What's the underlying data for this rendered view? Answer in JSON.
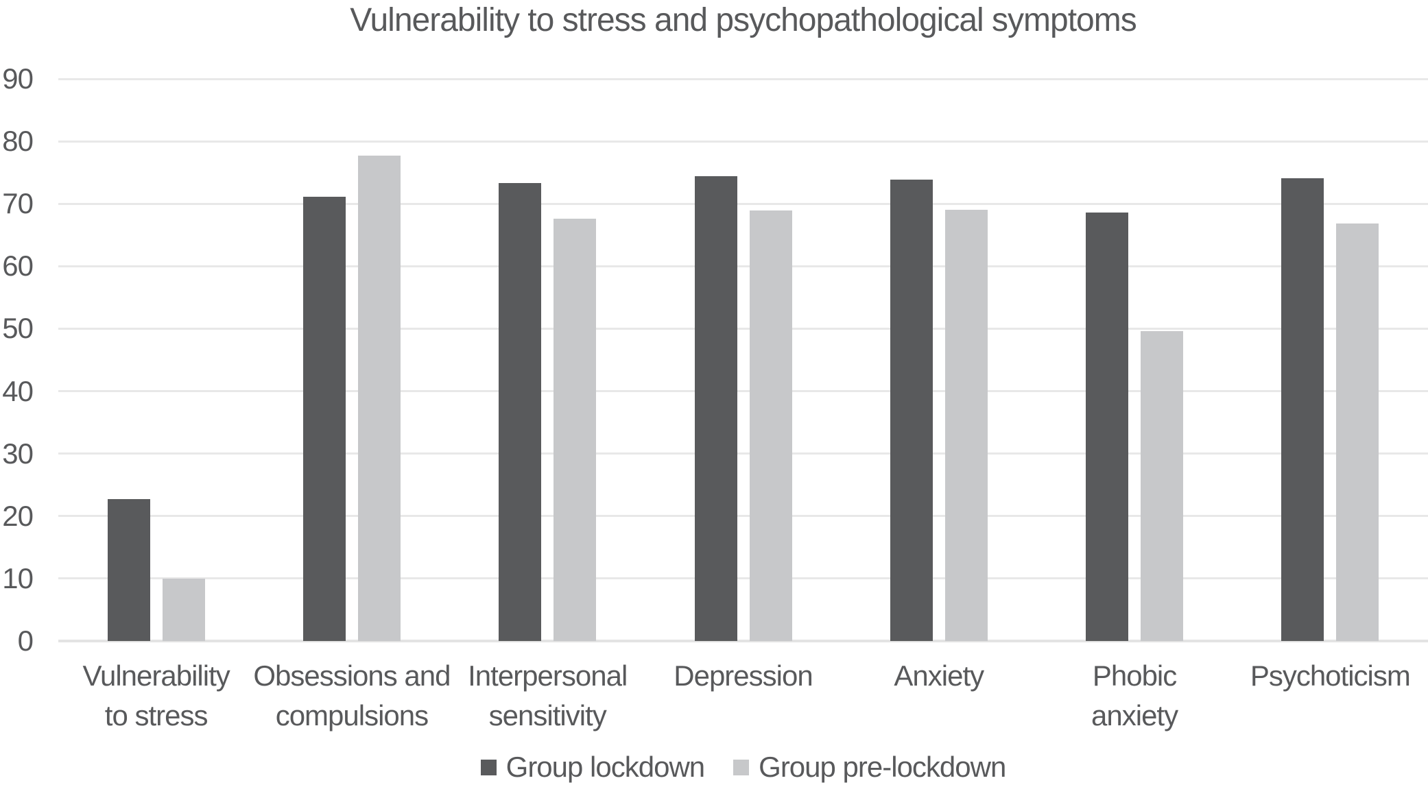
{
  "chart_data": {
    "type": "bar",
    "title": "Vulnerability to stress and psychopathological symptoms",
    "categories": [
      "Vulnerability to stress",
      "Obsessions and compulsions",
      "Interpersonal sensitivity",
      "Depression",
      "Anxiety",
      "Phobic anxiety",
      "Psychoticism"
    ],
    "category_lines": [
      [
        "Vulnerability",
        "to stress"
      ],
      [
        "Obsessions and",
        "compulsions"
      ],
      [
        "Interpersonal",
        "sensitivity"
      ],
      [
        "Depression"
      ],
      [
        "Anxiety"
      ],
      [
        "Phobic",
        "anxiety"
      ],
      [
        "Psychoticism"
      ]
    ],
    "series": [
      {
        "name": "Group lockdown",
        "color": "#595A5C",
        "values": [
          22.7,
          71.1,
          73.3,
          74.4,
          73.9,
          68.6,
          74.1
        ]
      },
      {
        "name": "Group pre-lockdown",
        "color": "#C7C8CA",
        "values": [
          10,
          77.7,
          67.6,
          68.9,
          69,
          49.6,
          66.8
        ]
      }
    ],
    "xlabel": "",
    "ylabel": "",
    "ylim": [
      0,
      90
    ],
    "yticks": [
      0,
      10,
      20,
      30,
      40,
      50,
      60,
      70,
      80,
      90
    ],
    "grid": "horizontal",
    "legend_position": "bottom",
    "colors": {
      "background": "#FFFFFF",
      "gridline": "#E8E8E8",
      "axis_line": "#E3E3E3",
      "text": "#58595B"
    }
  }
}
